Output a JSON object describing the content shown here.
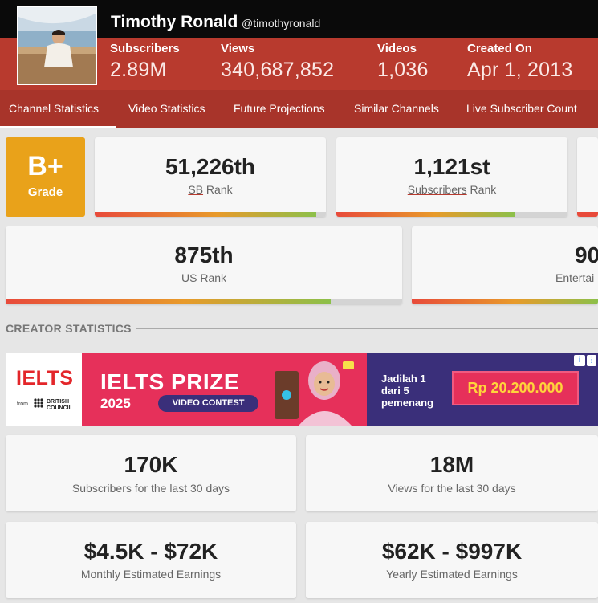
{
  "channel": {
    "name": "Timothy Ronald",
    "handle": "@timothyronald",
    "stats": [
      {
        "label": "Subscribers",
        "value": "2.89M"
      },
      {
        "label": "Views",
        "value": "340,687,852"
      },
      {
        "label": "Videos",
        "value": "1,036"
      },
      {
        "label": "Created On",
        "value": "Apr 1, 2013"
      }
    ]
  },
  "nav": {
    "tabs": [
      {
        "label": "Channel Statistics",
        "active": true
      },
      {
        "label": "Video Statistics",
        "active": false
      },
      {
        "label": "Future Projections",
        "active": false
      },
      {
        "label": "Similar Channels",
        "active": false
      },
      {
        "label": "Live Subscriber Count",
        "active": false
      }
    ]
  },
  "grade": {
    "value": "B+",
    "label": "Grade",
    "color": "#e9a21a"
  },
  "ranks": [
    {
      "value": "51,226th",
      "link": "SB",
      "suffix": " Rank",
      "progress": 0.96
    },
    {
      "value": "1,121st",
      "link": "Subscribers",
      "suffix": " Rank",
      "progress": 0.77
    },
    {
      "value": "875th",
      "link": "US",
      "suffix": " Rank",
      "progress": 0.82
    },
    {
      "value": "90",
      "link": "Entertai",
      "suffix": "",
      "progress": 1.0
    }
  ],
  "section": {
    "title": "CREATOR STATISTICS"
  },
  "ad": {
    "logo": "IELTS",
    "from": "from",
    "council_line1": "BRITISH",
    "council_line2": "COUNCIL",
    "title": "IELTS PRIZE",
    "year": "2025",
    "badge": "VIDEO CONTEST",
    "tagline_line1": "Jadilah 1",
    "tagline_line2": "dari 5",
    "tagline_line3": "pemenang",
    "prize": "Rp 20.200.000",
    "info_icon": "i",
    "menu_icon": "⋮"
  },
  "creator_stats": [
    {
      "value": "170K",
      "label": "Subscribers for the last 30 days"
    },
    {
      "value": "18M",
      "label": "Views for the last 30 days"
    },
    {
      "value": "$4.5K - $72K",
      "label": "Monthly Estimated Earnings"
    },
    {
      "value": "$62K - $997K",
      "label": "Yearly Estimated Earnings"
    }
  ],
  "colors": {
    "header_black": "#0a0a0a",
    "header_red": "#b83a2e",
    "nav_red": "#a8342a",
    "grade_orange": "#e9a21a"
  }
}
